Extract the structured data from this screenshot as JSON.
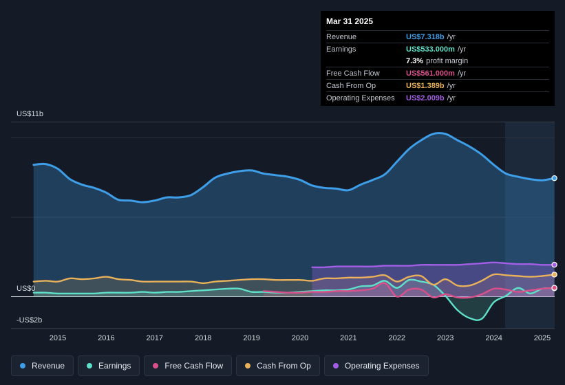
{
  "tooltip": {
    "date": "Mar 31 2025",
    "rows": [
      {
        "label": "Revenue",
        "value": "US$7.318b",
        "unit": "/yr",
        "color": "#3e9ee8"
      },
      {
        "label": "Earnings",
        "value": "US$533.000m",
        "unit": "/yr",
        "color": "#5fe0c9"
      },
      {
        "label": "",
        "value": "7.3%",
        "unit": "profit margin",
        "color": "#ffffff"
      },
      {
        "label": "Free Cash Flow",
        "value": "US$561.000m",
        "unit": "/yr",
        "color": "#d9508a"
      },
      {
        "label": "Cash From Op",
        "value": "US$1.389b",
        "unit": "/yr",
        "color": "#e8b15a"
      },
      {
        "label": "Operating Expenses",
        "value": "US$2.009b",
        "unit": "/yr",
        "color": "#a25fe6"
      }
    ]
  },
  "axis": {
    "top_label": "US$11b",
    "zero_label": "US$0",
    "bottom_label": "-US$2b"
  },
  "legend": [
    {
      "label": "Revenue",
      "color": "#3e9ee8"
    },
    {
      "label": "Earnings",
      "color": "#5fe0c9"
    },
    {
      "label": "Free Cash Flow",
      "color": "#d9508a"
    },
    {
      "label": "Cash From Op",
      "color": "#e8b15a"
    },
    {
      "label": "Operating Expenses",
      "color": "#a25fe6"
    }
  ],
  "chart_data": {
    "type": "area",
    "title": "",
    "xlabel": "",
    "ylabel": "",
    "ylim": [
      -2,
      11
    ],
    "x_ticks": [
      "2015",
      "2016",
      "2017",
      "2018",
      "2019",
      "2020",
      "2021",
      "2022",
      "2023",
      "2024",
      "2025"
    ],
    "series": [
      {
        "name": "Revenue",
        "color": "#3e9ee8",
        "x": [
          2014.5,
          2014.75,
          2015.0,
          2015.25,
          2015.5,
          2015.75,
          2016.0,
          2016.25,
          2016.5,
          2016.75,
          2017.0,
          2017.25,
          2017.5,
          2017.75,
          2018.0,
          2018.25,
          2018.5,
          2018.75,
          2019.0,
          2019.25,
          2019.5,
          2019.75,
          2020.0,
          2020.25,
          2020.5,
          2020.75,
          2021.0,
          2021.25,
          2021.5,
          2021.75,
          2022.0,
          2022.25,
          2022.5,
          2022.75,
          2023.0,
          2023.25,
          2023.5,
          2023.75,
          2024.0,
          2024.25,
          2024.5,
          2024.75,
          2025.0,
          2025.25
        ],
        "y": [
          8.3,
          8.35,
          8.05,
          7.4,
          7.05,
          6.85,
          6.55,
          6.1,
          6.05,
          5.95,
          6.05,
          6.25,
          6.25,
          6.4,
          6.9,
          7.5,
          7.75,
          7.9,
          7.95,
          7.75,
          7.65,
          7.55,
          7.35,
          7.0,
          6.85,
          6.8,
          6.7,
          7.05,
          7.35,
          7.7,
          8.5,
          9.3,
          9.85,
          10.25,
          10.25,
          9.85,
          9.45,
          8.95,
          8.3,
          7.75,
          7.55,
          7.4,
          7.33,
          7.46
        ]
      },
      {
        "name": "Earnings",
        "color": "#5fe0c9",
        "x": [
          2014.5,
          2014.75,
          2015.0,
          2015.25,
          2015.5,
          2015.75,
          2016.0,
          2016.25,
          2016.5,
          2016.75,
          2017.0,
          2017.25,
          2017.5,
          2017.75,
          2018.0,
          2018.25,
          2018.5,
          2018.75,
          2019.0,
          2019.25,
          2019.5,
          2019.75,
          2020.0,
          2020.25,
          2020.5,
          2020.75,
          2021.0,
          2021.25,
          2021.5,
          2021.75,
          2022.0,
          2022.25,
          2022.5,
          2022.75,
          2023.0,
          2023.25,
          2023.5,
          2023.75,
          2024.0,
          2024.25,
          2024.5,
          2024.75,
          2025.0,
          2025.25
        ],
        "y": [
          0.25,
          0.25,
          0.2,
          0.2,
          0.2,
          0.2,
          0.25,
          0.25,
          0.25,
          0.3,
          0.25,
          0.3,
          0.3,
          0.35,
          0.4,
          0.45,
          0.5,
          0.5,
          0.3,
          0.3,
          0.25,
          0.25,
          0.3,
          0.35,
          0.4,
          0.4,
          0.45,
          0.65,
          0.7,
          1.0,
          0.55,
          1.05,
          0.95,
          0.75,
          0.05,
          -0.85,
          -1.35,
          -1.4,
          -0.35,
          0.05,
          0.55,
          0.2,
          0.5,
          0.53
        ]
      },
      {
        "name": "Free Cash Flow",
        "color": "#d9508a",
        "x": [
          2019.25,
          2019.5,
          2019.75,
          2020.0,
          2020.25,
          2020.5,
          2020.75,
          2021.0,
          2021.25,
          2021.5,
          2021.75,
          2022.0,
          2022.25,
          2022.5,
          2022.75,
          2023.0,
          2023.25,
          2023.5,
          2023.75,
          2024.0,
          2024.25,
          2024.5,
          2024.75,
          2025.0,
          2025.25
        ],
        "y": [
          0.35,
          0.3,
          0.25,
          0.25,
          0.3,
          0.3,
          0.35,
          0.35,
          0.4,
          0.5,
          0.85,
          0.0,
          0.45,
          0.45,
          -0.05,
          0.15,
          -0.05,
          -0.05,
          0.15,
          0.5,
          0.45,
          0.3,
          0.4,
          0.5,
          0.56
        ]
      },
      {
        "name": "Cash From Op",
        "color": "#e8b15a",
        "x": [
          2014.5,
          2014.75,
          2015.0,
          2015.25,
          2015.5,
          2015.75,
          2016.0,
          2016.25,
          2016.5,
          2016.75,
          2017.0,
          2017.25,
          2017.5,
          2017.75,
          2018.0,
          2018.25,
          2018.5,
          2018.75,
          2019.0,
          2019.25,
          2019.5,
          2019.75,
          2020.0,
          2020.25,
          2020.5,
          2020.75,
          2021.0,
          2021.25,
          2021.5,
          2021.75,
          2022.0,
          2022.25,
          2022.5,
          2022.75,
          2023.0,
          2023.25,
          2023.5,
          2023.75,
          2024.0,
          2024.25,
          2024.5,
          2024.75,
          2025.0,
          2025.25
        ],
        "y": [
          0.95,
          1.0,
          0.95,
          1.15,
          1.1,
          1.15,
          1.25,
          1.1,
          1.05,
          0.95,
          0.95,
          0.95,
          0.95,
          0.95,
          0.85,
          0.95,
          1.0,
          1.05,
          1.1,
          1.1,
          1.05,
          1.05,
          1.05,
          1.0,
          1.15,
          1.15,
          1.2,
          1.2,
          1.25,
          1.35,
          0.95,
          1.25,
          1.3,
          0.75,
          1.1,
          0.7,
          0.7,
          1.0,
          1.4,
          1.35,
          1.3,
          1.25,
          1.3,
          1.39
        ]
      },
      {
        "name": "Operating Expenses",
        "color": "#a25fe6",
        "x": [
          2020.25,
          2020.5,
          2020.75,
          2021.0,
          2021.25,
          2021.5,
          2021.75,
          2022.0,
          2022.25,
          2022.5,
          2022.75,
          2023.0,
          2023.25,
          2023.5,
          2023.75,
          2024.0,
          2024.25,
          2024.5,
          2024.75,
          2025.0,
          2025.25
        ],
        "y": [
          1.85,
          1.85,
          1.9,
          1.9,
          1.9,
          1.9,
          1.95,
          1.95,
          1.95,
          2.0,
          2.0,
          2.0,
          2.0,
          2.05,
          2.1,
          2.15,
          2.1,
          2.05,
          2.05,
          2.0,
          2.01
        ]
      }
    ]
  }
}
